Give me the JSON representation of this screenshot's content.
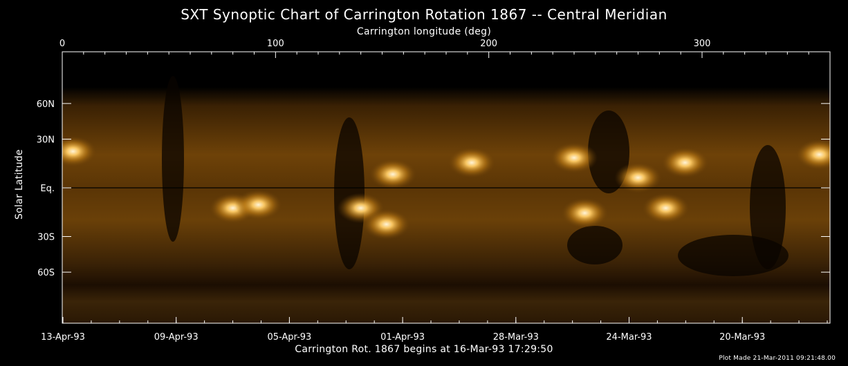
{
  "chart_data": {
    "type": "heatmap",
    "title": "SXT Synoptic Chart of Carrington Rotation 1867 -- Central Meridian",
    "top_axis": {
      "label": "Carrington longitude (deg)",
      "range": [
        0,
        360
      ],
      "major_ticks": [
        0,
        100,
        200,
        300
      ],
      "tick_labels": [
        "0",
        "100",
        "200",
        "300"
      ]
    },
    "left_axis": {
      "label": "Solar Latitude",
      "ticks": [
        {
          "value": 60,
          "label": "60N"
        },
        {
          "value": 30,
          "label": "30N"
        },
        {
          "value": 0,
          "label": "Eq."
        },
        {
          "value": -30,
          "label": "30S"
        },
        {
          "value": -60,
          "label": "60S"
        }
      ]
    },
    "bottom_axis": {
      "tick_labels": [
        "13-Apr-93",
        "09-Apr-93",
        "05-Apr-93",
        "01-Apr-93",
        "28-Mar-93",
        "24-Mar-93",
        "20-Mar-93"
      ]
    },
    "footer": "Carrington Rot. 1867 begins at 16-Mar-93 17:29:50",
    "plot_made": "Plot Made 21-Mar-2011 09:21:48.00",
    "colors": {
      "background": "#000000",
      "map_dark": "#120800",
      "map_mid": "#6e4208",
      "map_bright": "#ffd890",
      "axes": "#ffffff"
    },
    "bright_regions": [
      {
        "lon": 5,
        "lat": 22
      },
      {
        "lon": 80,
        "lat": -12
      },
      {
        "lon": 92,
        "lat": -10
      },
      {
        "lon": 140,
        "lat": -12
      },
      {
        "lon": 155,
        "lat": 8
      },
      {
        "lon": 152,
        "lat": -22
      },
      {
        "lon": 192,
        "lat": 15
      },
      {
        "lon": 240,
        "lat": 18
      },
      {
        "lon": 245,
        "lat": -15
      },
      {
        "lon": 270,
        "lat": 6
      },
      {
        "lon": 283,
        "lat": -12
      },
      {
        "lon": 292,
        "lat": 15
      },
      {
        "lon": 355,
        "lat": 20
      }
    ]
  }
}
